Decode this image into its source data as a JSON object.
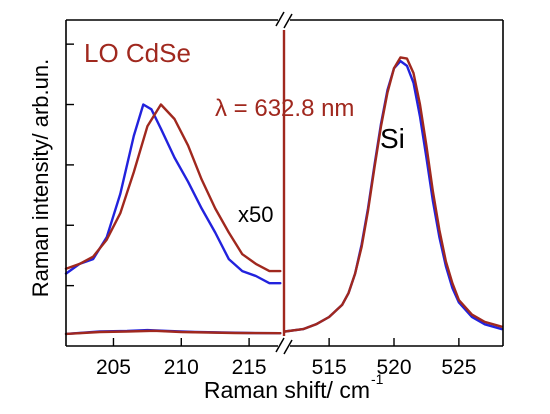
{
  "chart_data": {
    "type": "line",
    "xlabel": "Raman shift/ cm",
    "xlabel_superscript": "-1",
    "ylabel": "Raman intensity/ arb.un.",
    "axis_break": true,
    "annotations": {
      "mode_label": "LO CdSe",
      "wavelength": "λ = 632.8 nm",
      "multiplier": "x50",
      "peak_label": "Si"
    },
    "colors": {
      "blue": "#2222dd",
      "red": "#a0281e",
      "axis": "#000000"
    },
    "panels": [
      {
        "name": "CdSe",
        "xlim": [
          201.5,
          217.5
        ],
        "ylim": [
          -0.05,
          1.3
        ],
        "xticks": [
          205,
          210,
          215
        ],
        "series": [
          {
            "color": "blue",
            "points": [
              [
                201.5,
                0.25
              ],
              [
                202.5,
                0.29
              ],
              [
                203.5,
                0.31
              ],
              [
                204.5,
                0.4
              ],
              [
                205.5,
                0.58
              ],
              [
                206.5,
                0.82
              ],
              [
                207.2,
                0.95
              ],
              [
                207.8,
                0.93
              ],
              [
                208.5,
                0.85
              ],
              [
                209.5,
                0.73
              ],
              [
                210.5,
                0.63
              ],
              [
                211.5,
                0.52
              ],
              [
                212.5,
                0.42
              ],
              [
                213.5,
                0.31
              ],
              [
                214.5,
                0.26
              ],
              [
                215.5,
                0.24
              ],
              [
                216.5,
                0.21
              ],
              [
                217.3,
                0.21
              ]
            ]
          },
          {
            "color": "red",
            "points": [
              [
                201.5,
                0.27
              ],
              [
                202.5,
                0.29
              ],
              [
                203.5,
                0.32
              ],
              [
                204.5,
                0.39
              ],
              [
                205.5,
                0.5
              ],
              [
                206.5,
                0.67
              ],
              [
                207.5,
                0.86
              ],
              [
                208.5,
                0.95
              ],
              [
                209.5,
                0.89
              ],
              [
                210.5,
                0.78
              ],
              [
                211.5,
                0.64
              ],
              [
                212.5,
                0.52
              ],
              [
                213.5,
                0.42
              ],
              [
                214.5,
                0.33
              ],
              [
                215.5,
                0.29
              ],
              [
                216.5,
                0.26
              ],
              [
                217.3,
                0.26
              ]
            ]
          },
          {
            "color": "blue",
            "points": [
              [
                201.5,
                0.0
              ],
              [
                204,
                0.01
              ],
              [
                206,
                0.012
              ],
              [
                207.5,
                0.016
              ],
              [
                209,
                0.012
              ],
              [
                211,
                0.008
              ],
              [
                213,
                0.006
              ],
              [
                215,
                0.004
              ],
              [
                217.3,
                0.003
              ]
            ]
          },
          {
            "color": "red",
            "points": [
              [
                201.5,
                0.0
              ],
              [
                204,
                0.008
              ],
              [
                206,
                0.01
              ],
              [
                208,
                0.013
              ],
              [
                210,
                0.008
              ],
              [
                212,
                0.006
              ],
              [
                214,
                0.004
              ],
              [
                217.3,
                0.003
              ]
            ]
          }
        ]
      },
      {
        "name": "Si",
        "xlim": [
          511.6,
          528.4
        ],
        "ylim": [
          -0.05,
          1.3
        ],
        "xticks": [
          515,
          520,
          525
        ],
        "series": [
          {
            "color": "blue",
            "points": [
              [
                511.6,
                0.01
              ],
              [
                513,
                0.02
              ],
              [
                514,
                0.04
              ],
              [
                515,
                0.07
              ],
              [
                516,
                0.12
              ],
              [
                516.5,
                0.17
              ],
              [
                517,
                0.25
              ],
              [
                517.5,
                0.37
              ],
              [
                518,
                0.52
              ],
              [
                518.5,
                0.7
              ],
              [
                519,
                0.87
              ],
              [
                519.5,
                1.01
              ],
              [
                520,
                1.1
              ],
              [
                520.5,
                1.13
              ],
              [
                521,
                1.11
              ],
              [
                521.5,
                1.04
              ],
              [
                522,
                0.9
              ],
              [
                522.5,
                0.73
              ],
              [
                523,
                0.55
              ],
              [
                523.5,
                0.4
              ],
              [
                524,
                0.28
              ],
              [
                524.5,
                0.19
              ],
              [
                525,
                0.13
              ],
              [
                526,
                0.07
              ],
              [
                527,
                0.04
              ],
              [
                528.3,
                0.02
              ]
            ]
          },
          {
            "color": "red",
            "points": [
              [
                511.6,
                0.01
              ],
              [
                513,
                0.02
              ],
              [
                514,
                0.04
              ],
              [
                515,
                0.07
              ],
              [
                516,
                0.12
              ],
              [
                516.5,
                0.17
              ],
              [
                517,
                0.25
              ],
              [
                517.5,
                0.36
              ],
              [
                518,
                0.51
              ],
              [
                518.5,
                0.69
              ],
              [
                519,
                0.86
              ],
              [
                519.5,
                1.0
              ],
              [
                520,
                1.1
              ],
              [
                520.5,
                1.145
              ],
              [
                521,
                1.14
              ],
              [
                521.5,
                1.08
              ],
              [
                522,
                0.95
              ],
              [
                522.5,
                0.78
              ],
              [
                523,
                0.59
              ],
              [
                523.5,
                0.43
              ],
              [
                524,
                0.3
              ],
              [
                524.5,
                0.21
              ],
              [
                525,
                0.14
              ],
              [
                526,
                0.08
              ],
              [
                527,
                0.05
              ],
              [
                528.3,
                0.03
              ]
            ]
          }
        ]
      }
    ]
  }
}
